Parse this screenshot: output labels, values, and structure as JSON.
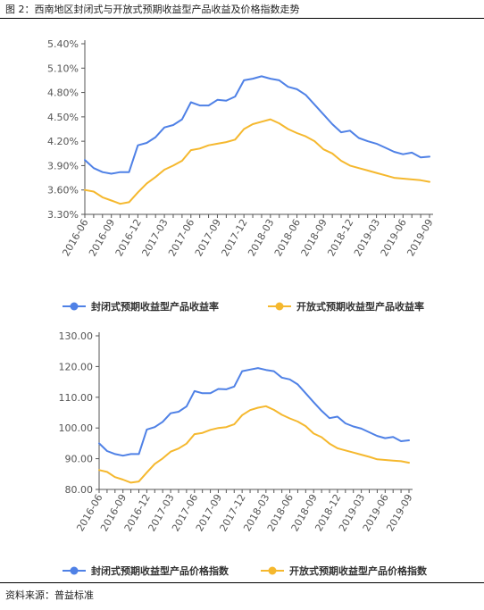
{
  "figure": {
    "title": "图 2：西南地区封闭式与开放式预期收益型产品收益及价格指数走势",
    "source": "资料来源：普益标准"
  },
  "colors": {
    "series1": "#4f81e6",
    "series2": "#f5b82e",
    "axis": "#555555"
  },
  "chart_data": [
    {
      "type": "line",
      "title": "",
      "xlabel": "",
      "ylabel": "",
      "x_tick_labels": [
        "2016-06",
        "2016-09",
        "2016-12",
        "2017-03",
        "2017-06",
        "2017-09",
        "2017-12",
        "2018-03",
        "2018-06",
        "2018-09",
        "2018-12",
        "2019-03",
        "2019-06",
        "2019-09"
      ],
      "x": [
        "2016-06",
        "2016-07",
        "2016-08",
        "2016-09",
        "2016-10",
        "2016-11",
        "2016-12",
        "2017-01",
        "2017-02",
        "2017-03",
        "2017-04",
        "2017-05",
        "2017-06",
        "2017-07",
        "2017-08",
        "2017-09",
        "2017-10",
        "2017-11",
        "2017-12",
        "2018-01",
        "2018-02",
        "2018-03",
        "2018-04",
        "2018-05",
        "2018-06",
        "2018-07",
        "2018-08",
        "2018-09",
        "2018-10",
        "2018-11",
        "2018-12",
        "2019-01",
        "2019-02",
        "2019-03",
        "2019-04",
        "2019-05",
        "2019-06",
        "2019-07",
        "2019-08",
        "2019-09"
      ],
      "y_tick_labels": [
        "3.30%",
        "3.60%",
        "3.90%",
        "4.20%",
        "4.50%",
        "4.80%",
        "5.10%",
        "5.40%"
      ],
      "ylim": [
        3.3,
        5.4
      ],
      "y_unit": "%",
      "grid": false,
      "legend_position": "bottom",
      "series": [
        {
          "name": "封闭式预期收益型产品收益率",
          "values": [
            3.97,
            3.87,
            3.82,
            3.8,
            3.82,
            3.82,
            4.15,
            4.18,
            4.25,
            4.37,
            4.4,
            4.47,
            4.68,
            4.64,
            4.64,
            4.71,
            4.7,
            4.75,
            4.95,
            4.97,
            5.0,
            4.97,
            4.95,
            4.87,
            4.84,
            4.77,
            4.65,
            4.53,
            4.41,
            4.31,
            4.33,
            4.24,
            4.2,
            4.17,
            4.12,
            4.07,
            4.04,
            4.06,
            4.0,
            4.01
          ]
        },
        {
          "name": "开放式预期收益型产品收益率",
          "values": [
            3.6,
            3.58,
            3.51,
            3.47,
            3.43,
            3.45,
            3.57,
            3.68,
            3.76,
            3.85,
            3.9,
            3.96,
            4.09,
            4.11,
            4.15,
            4.17,
            4.19,
            4.22,
            4.35,
            4.41,
            4.44,
            4.47,
            4.42,
            4.35,
            4.3,
            4.26,
            4.2,
            4.1,
            4.05,
            3.96,
            3.9,
            3.87,
            3.84,
            3.81,
            3.78,
            3.75,
            3.74,
            3.73,
            3.72,
            3.7
          ]
        }
      ]
    },
    {
      "type": "line",
      "title": "",
      "xlabel": "",
      "ylabel": "",
      "x_tick_labels": [
        "2016-06",
        "2016-09",
        "2016-12",
        "2017-03",
        "2017-06",
        "2017-09",
        "2017-12",
        "2018-03",
        "2018-06",
        "2018-09",
        "2018-12",
        "2019-03",
        "2019-06",
        "2019-09"
      ],
      "x": [
        "2016-06",
        "2016-07",
        "2016-08",
        "2016-09",
        "2016-10",
        "2016-11",
        "2016-12",
        "2017-01",
        "2017-02",
        "2017-03",
        "2017-04",
        "2017-05",
        "2017-06",
        "2017-07",
        "2017-08",
        "2017-09",
        "2017-10",
        "2017-11",
        "2017-12",
        "2018-01",
        "2018-02",
        "2018-03",
        "2018-04",
        "2018-05",
        "2018-06",
        "2018-07",
        "2018-08",
        "2018-09",
        "2018-10",
        "2018-11",
        "2018-12",
        "2019-01",
        "2019-02",
        "2019-03",
        "2019-04",
        "2019-05",
        "2019-06",
        "2019-07",
        "2019-08",
        "2019-09"
      ],
      "y_tick_labels": [
        "80.00",
        "90.00",
        "100.00",
        "110.00",
        "120.00",
        "130.00"
      ],
      "ylim": [
        80,
        130
      ],
      "grid": false,
      "legend_position": "bottom",
      "series": [
        {
          "name": "封闭式预期收益型产品价格指数",
          "values": [
            95.0,
            92.5,
            91.5,
            91.0,
            91.5,
            91.5,
            99.5,
            100.3,
            102.0,
            104.8,
            105.3,
            107.0,
            112.0,
            111.3,
            111.3,
            112.7,
            112.6,
            113.5,
            118.5,
            119.0,
            119.5,
            118.9,
            118.5,
            116.4,
            115.8,
            114.2,
            111.3,
            108.4,
            105.6,
            103.2,
            103.7,
            101.5,
            100.5,
            99.8,
            98.6,
            97.4,
            96.7,
            97.1,
            95.7,
            96.0
          ]
        },
        {
          "name": "开放式预期收益型产品价格指数",
          "values": [
            86.3,
            85.7,
            84.0,
            83.2,
            82.2,
            82.6,
            85.5,
            88.3,
            90.1,
            92.3,
            93.3,
            94.9,
            98.0,
            98.4,
            99.4,
            100.0,
            100.3,
            101.2,
            104.2,
            105.8,
            106.6,
            107.1,
            105.9,
            104.3,
            103.1,
            102.1,
            100.6,
            98.2,
            97.0,
            94.9,
            93.4,
            92.7,
            92.0,
            91.3,
            90.6,
            89.8,
            89.6,
            89.4,
            89.2,
            88.7
          ]
        }
      ]
    }
  ]
}
